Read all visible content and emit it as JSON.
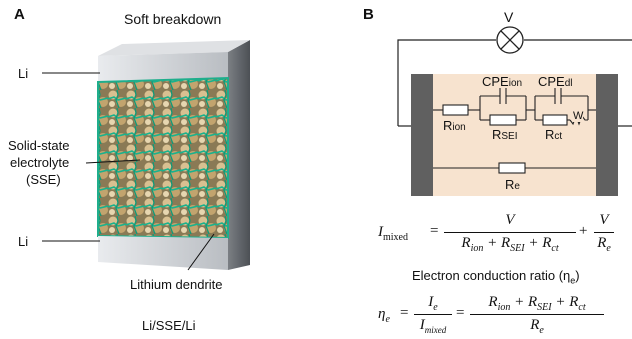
{
  "panel_a": {
    "label": "A",
    "title": "Soft breakdown",
    "li_top": "Li",
    "sse_line1": "Solid-state",
    "sse_line2": "electrolyte",
    "sse_line3": "(SSE)",
    "li_bottom": "Li",
    "dendrite": "Lithium dendrite",
    "caption": "Li/SSE/Li"
  },
  "panel_b": {
    "label": "B",
    "voltmeter": "V",
    "cpe_ion": "CPE",
    "cpe_ion_sub": "ion",
    "cpe_dl": "CPE",
    "cpe_dl_sub": "dl",
    "r_ion": "R",
    "r_ion_sub": "ion",
    "r_sei": "R",
    "r_sei_sub": "SEI",
    "r_ct": "R",
    "r_ct_sub": "ct",
    "warburg": "W",
    "r_e": "R",
    "r_e_sub": "e",
    "equation1_lhs": "I",
    "equation1_lhs_sub": "mixed",
    "ratio_title": "Electron conduction ratio (η",
    "ratio_title_sub": "e",
    "ratio_title_end": ")"
  },
  "colors": {
    "cell_fill": "#f7e3cf",
    "electrode": "#5f5f5f",
    "sse_green": "#1fae8c",
    "sse_tan": "#b89a6a",
    "li_foil": "#c9ccd0"
  }
}
